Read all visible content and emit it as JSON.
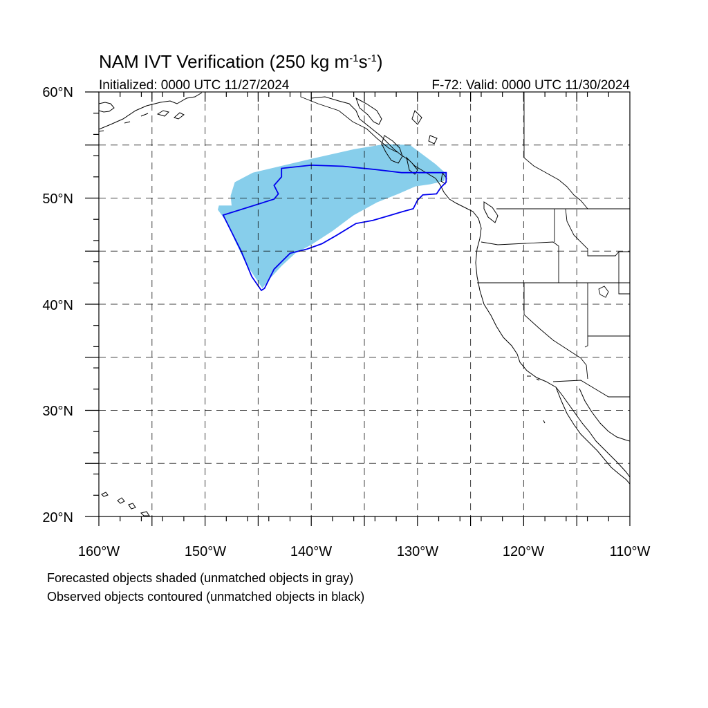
{
  "title": {
    "main": "NAM IVT Verification (250 kg m",
    "sup1": "-1",
    "mid": "s",
    "sup2": "-1",
    "end": ")"
  },
  "initialized": "Initialized: 0000 UTC 11/27/2024",
  "valid": "F-72: Valid: 0000 UTC 11/30/2024",
  "map": {
    "lon_range": [
      -160,
      -110
    ],
    "lat_range": [
      20,
      60
    ],
    "lon_labels": [
      "160°W",
      "150°W",
      "140°W",
      "130°W",
      "120°W",
      "110°W"
    ],
    "lat_labels": [
      "20°N",
      "30°N",
      "40°N",
      "50°N",
      "60°N"
    ],
    "grid_spacing_deg": 5,
    "forecast_color": "#87CEEB",
    "observed_color": "#0000EE"
  },
  "forecast_object": [
    [
      -148.7,
      49.3
    ],
    [
      -147.5,
      49.3
    ],
    [
      -147.6,
      50.2
    ],
    [
      -147.2,
      51.5
    ],
    [
      -145.5,
      52.4
    ],
    [
      -140.0,
      53.7
    ],
    [
      -136.0,
      54.6
    ],
    [
      -133.0,
      55.1
    ],
    [
      -130.7,
      55.0
    ],
    [
      -129.5,
      54.1
    ],
    [
      -128.3,
      53.2
    ],
    [
      -127.3,
      52.3
    ],
    [
      -127.5,
      51.6
    ],
    [
      -128.8,
      51.3
    ],
    [
      -130.2,
      51.1
    ],
    [
      -131.8,
      50.4
    ],
    [
      -133.8,
      49.6
    ],
    [
      -136.0,
      48.4
    ],
    [
      -138.0,
      46.9
    ],
    [
      -140.0,
      45.6
    ],
    [
      -141.5,
      44.8
    ],
    [
      -142.8,
      43.6
    ],
    [
      -144.0,
      42.3
    ],
    [
      -144.6,
      41.5
    ],
    [
      -146.2,
      43.9
    ],
    [
      -147.2,
      46.0
    ],
    [
      -148.0,
      47.8
    ],
    [
      -148.8,
      48.9
    ]
  ],
  "observed_object": [
    [
      -148.3,
      48.4
    ],
    [
      -143.5,
      49.9
    ],
    [
      -143.1,
      50.4
    ],
    [
      -143.5,
      51.2
    ],
    [
      -142.8,
      52.0
    ],
    [
      -142.8,
      52.8
    ],
    [
      -140.0,
      53.1
    ],
    [
      -137.0,
      53.0
    ],
    [
      -134.0,
      52.7
    ],
    [
      -131.5,
      52.4
    ],
    [
      -129.0,
      52.4
    ],
    [
      -127.3,
      52.4
    ],
    [
      -127.3,
      51.5
    ],
    [
      -127.8,
      51.0
    ],
    [
      -128.2,
      50.4
    ],
    [
      -129.5,
      50.3
    ],
    [
      -130.0,
      49.8
    ],
    [
      -130.4,
      49.0
    ],
    [
      -131.5,
      48.7
    ],
    [
      -132.5,
      48.4
    ],
    [
      -134.2,
      47.9
    ],
    [
      -135.8,
      47.6
    ],
    [
      -137.6,
      46.5
    ],
    [
      -139.0,
      45.7
    ],
    [
      -140.4,
      45.2
    ],
    [
      -142.0,
      44.8
    ],
    [
      -143.5,
      43.3
    ],
    [
      -144.4,
      41.5
    ],
    [
      -144.7,
      41.3
    ],
    [
      -145.6,
      42.6
    ],
    [
      -146.6,
      45.0
    ],
    [
      -147.5,
      46.8
    ]
  ],
  "captions": [
    "Forecasted objects shaded (unmatched objects in gray)",
    "Observed objects contoured (unmatched objects in black)"
  ]
}
